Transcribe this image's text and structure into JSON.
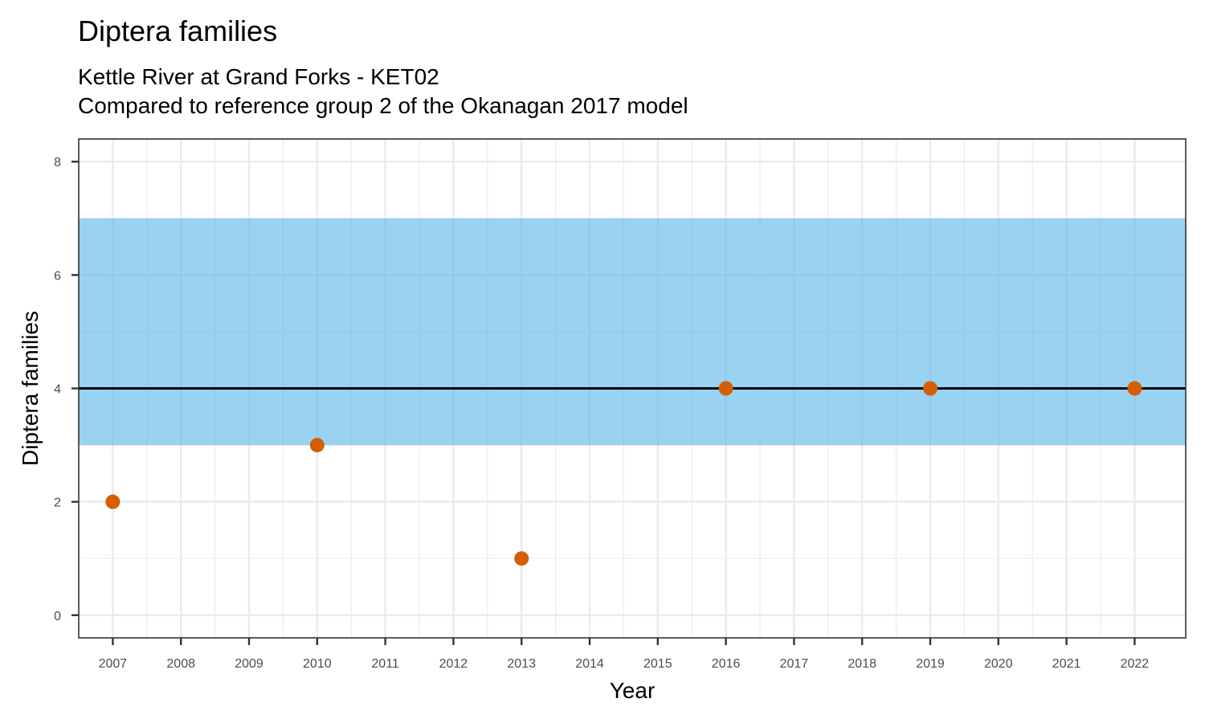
{
  "chart_data": {
    "type": "scatter",
    "title": "Diptera families",
    "subtitle_lines": [
      "Kettle River at Grand Forks - KET02",
      "Compared to reference group 2 of the Okanagan 2017 model"
    ],
    "xlabel": "Year",
    "ylabel": "Diptera families",
    "xlim": [
      2006.5,
      2022.75
    ],
    "ylim": [
      -0.4,
      8.4
    ],
    "x_ticks": [
      2007,
      2008,
      2009,
      2010,
      2011,
      2012,
      2013,
      2014,
      2015,
      2016,
      2017,
      2018,
      2019,
      2020,
      2021,
      2022
    ],
    "y_ticks": [
      0,
      2,
      4,
      6,
      8
    ],
    "reference_band": {
      "ymin": 3,
      "ymax": 7,
      "color": "#56B4E9"
    },
    "reference_line": {
      "y": 4,
      "color": "#000000"
    },
    "points": [
      {
        "x": 2007,
        "y": 2
      },
      {
        "x": 2010,
        "y": 3
      },
      {
        "x": 2013,
        "y": 1
      },
      {
        "x": 2016,
        "y": 4
      },
      {
        "x": 2019,
        "y": 4
      },
      {
        "x": 2022,
        "y": 4
      }
    ],
    "point_color": "#D55E00",
    "grid": true
  }
}
